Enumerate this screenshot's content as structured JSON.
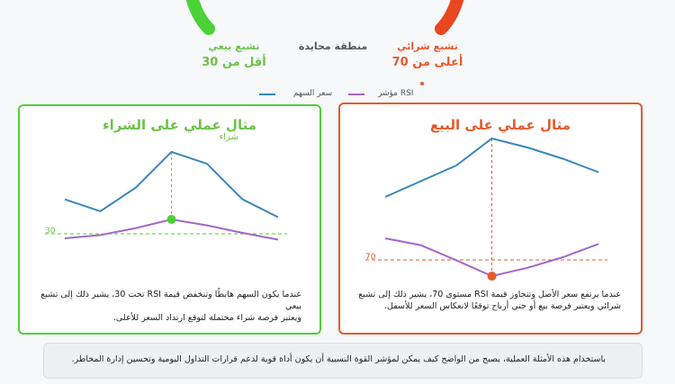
{
  "zones": {
    "oversold": {
      "label": "تشبع بيعي",
      "threshold_text": "أقل من 30",
      "color": "#6cc24a"
    },
    "neutral": {
      "label": "منطقة محايدة",
      "color": "#555555"
    },
    "overbought": {
      "label": "تشبع شرائي",
      "threshold_text": "أعلى من 70",
      "color": "#e55a2b"
    }
  },
  "legend": {
    "price": {
      "label": "سعر السهم",
      "color": "#3a87b8"
    },
    "rsi": {
      "label": "RSI مؤشر",
      "color": "#a366c9"
    }
  },
  "buy_example": {
    "title": "مثال عملي على الشراء",
    "overlap_label": "شراء",
    "level_label": "30",
    "description_line1": "عندما يكون السهم هابطًا وتنخفض قيمة RSI تحت 30، يشير ذلك إلى تشبع بيعي",
    "description_line2": "ويعتبر فرصة شراء محتملة لتوقع ارتداد السعر للأعلى.",
    "color": "#4cd137",
    "price_line": [
      0,
      1,
      2,
      3,
      4,
      5,
      6
    ],
    "price_values": [
      0.55,
      0.35,
      0.75,
      1.35,
      1.15,
      0.55,
      0.25
    ],
    "rsi_values": [
      0.3,
      0.42,
      0.68,
      1.0,
      0.78,
      0.5,
      0.25
    ],
    "signal_index": 3
  },
  "sell_example": {
    "title": "مثال عملي على البيع",
    "level_label": "70",
    "description_line1": "عندما يرتفع سعر الأصل وتتجاوز قيمة RSI مستوى 70، يشير ذلك إلى تشبع",
    "description_line2": "شرائي ويعتبر فرصة بيع أو جني أرباح توقعًا لانعكاس السعر للأسفل.",
    "color": "#e55a2b",
    "price_values": [
      0.2,
      0.55,
      0.9,
      1.5,
      1.3,
      1.05,
      0.75
    ],
    "rsi_values": [
      1.0,
      0.82,
      0.42,
      0.0,
      0.22,
      0.5,
      0.85
    ],
    "signal_index": 3
  },
  "footer": {
    "text": "باستخدام هذه الأمثلة العملية، يصبح من الواضح كيف يمكن لمؤشر القوة النسبية أن يكون أداة قوية لدعم قرارات التداول اليومية وتحسين إدارة المخاطر."
  }
}
